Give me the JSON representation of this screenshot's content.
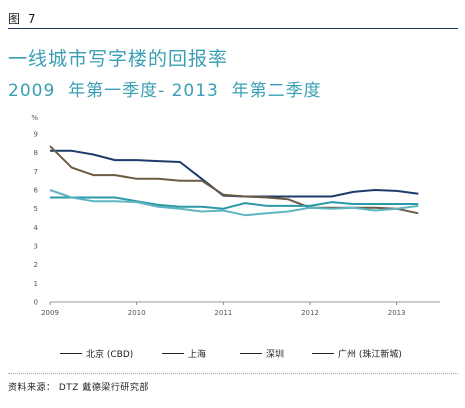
{
  "figure_label": "图 7",
  "chart_data": {
    "type": "line",
    "title": "一线城市写字楼的回报率",
    "subtitle": "2009  年第一季度- 2013  年第二季度",
    "ylabel": "%",
    "xlabel": "",
    "ylim": [
      0,
      9
    ],
    "yticks": [
      0,
      1,
      2,
      3,
      4,
      5,
      6,
      7,
      8,
      9
    ],
    "xlim": [
      2009.0,
      2013.5
    ],
    "xticks": [
      2009,
      2010,
      2011,
      2012,
      2013
    ],
    "grid": false,
    "legend_position": "bottom",
    "x": [
      2009.0,
      2009.25,
      2009.5,
      2009.75,
      2010.0,
      2010.25,
      2010.5,
      2010.75,
      2011.0,
      2011.25,
      2011.5,
      2011.75,
      2012.0,
      2012.25,
      2012.5,
      2012.75,
      2013.0,
      2013.25
    ],
    "series": [
      {
        "name": "北京 (CBD)",
        "color": "#1c3c6b",
        "values": [
          8.1,
          8.1,
          7.9,
          7.6,
          7.6,
          7.55,
          7.5,
          6.6,
          5.7,
          5.65,
          5.65,
          5.65,
          5.65,
          5.65,
          5.9,
          6.0,
          5.95,
          5.8
        ]
      },
      {
        "name": "上海",
        "color": "#6b5b45",
        "values": [
          8.35,
          7.2,
          6.8,
          6.8,
          6.6,
          6.6,
          6.5,
          6.5,
          5.75,
          5.65,
          5.6,
          5.5,
          5.05,
          5.05,
          5.05,
          5.05,
          5.0,
          4.75
        ]
      },
      {
        "name": "深圳",
        "color": "#2b9aa8",
        "values": [
          5.6,
          5.6,
          5.6,
          5.6,
          5.4,
          5.2,
          5.1,
          5.1,
          5.0,
          5.3,
          5.15,
          5.15,
          5.15,
          5.35,
          5.25,
          5.25,
          5.25,
          5.25
        ]
      },
      {
        "name": "广州 (珠江新城)",
        "color": "#5fb6c2",
        "values": [
          6.0,
          5.6,
          5.4,
          5.4,
          5.35,
          5.1,
          5.0,
          4.85,
          4.9,
          4.65,
          4.75,
          4.85,
          5.05,
          5.0,
          5.05,
          4.9,
          5.0,
          5.15
        ]
      }
    ]
  },
  "legend": {
    "items": [
      "北京 (CBD)",
      "上海",
      "深圳",
      "广州 (珠江新城)"
    ],
    "colors": [
      "#1c3c6b",
      "#6b5b45",
      "#2b9aa8",
      "#5fb6c2"
    ]
  },
  "source": "资料来源： DTZ 戴德梁行研究部"
}
